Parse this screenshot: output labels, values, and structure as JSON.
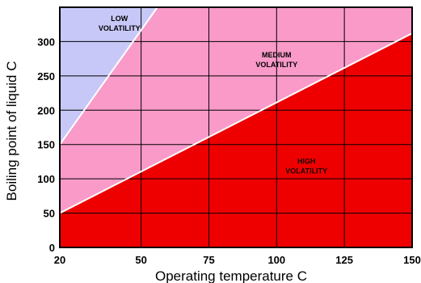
{
  "chart_data": {
    "type": "area",
    "title": "",
    "xlabel": "Operating temperature C",
    "ylabel": "Boiling point of liquid C",
    "xlim": [
      20,
      150
    ],
    "ylim": [
      0,
      350
    ],
    "x_ticks": [
      20,
      50,
      75,
      100,
      125,
      150
    ],
    "y_ticks": [
      0,
      50,
      100,
      150,
      200,
      250,
      300
    ],
    "grid": true,
    "boundaries": [
      {
        "points": [
          [
            20,
            150
          ],
          [
            56,
            350
          ]
        ]
      },
      {
        "points": [
          [
            20,
            50
          ],
          [
            150,
            312
          ]
        ]
      }
    ],
    "regions": [
      {
        "label": [
          "LOW",
          "VOLATILITY"
        ],
        "color": "#c8c8f8",
        "label_at": [
          42,
          330
        ]
      },
      {
        "label": [
          "MEDIUM",
          "VOLATILITY"
        ],
        "color": "#f99ac9",
        "label_at": [
          100,
          277
        ]
      },
      {
        "label": [
          "HIGH",
          "VOLATILITY"
        ],
        "color": "#ee0000",
        "label_at": [
          111,
          122
        ]
      }
    ],
    "boundary_color": "#ffffff",
    "grid_color": "#000000"
  }
}
